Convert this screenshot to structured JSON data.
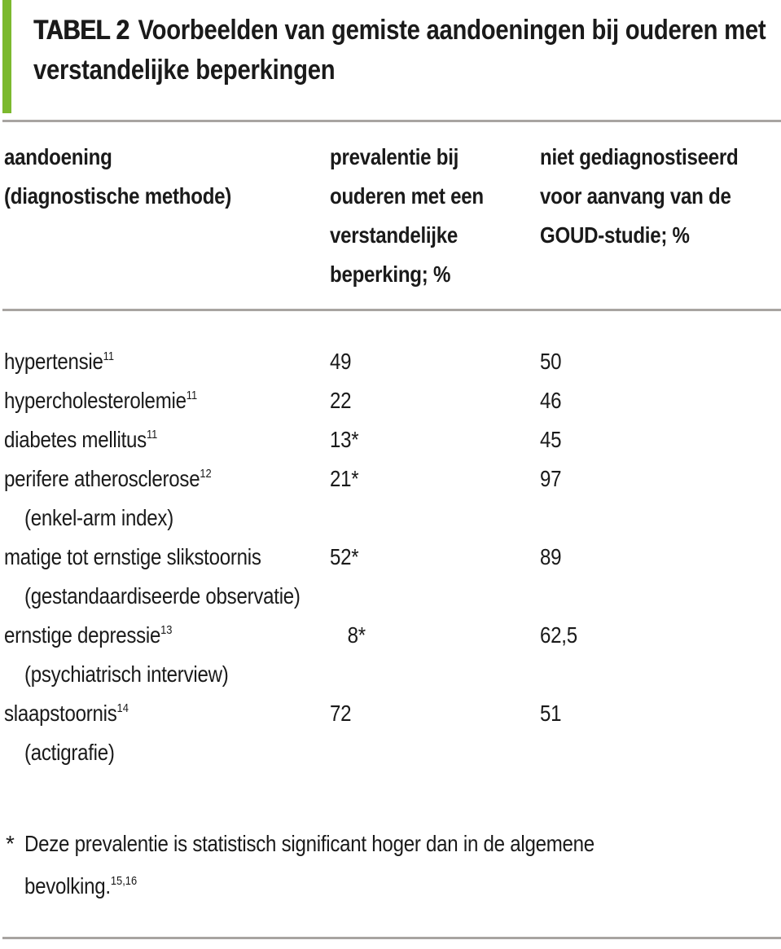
{
  "title": {
    "label": "TABEL 2",
    "line1": "Voorbeelden van gemiste aandoeningen bij ouderen met",
    "line2": "verstandelijke beperkingen"
  },
  "header": {
    "col1": [
      "aandoening",
      "(diagnostische methode)"
    ],
    "col2": [
      "prevalentie bij",
      "ouderen met een",
      "verstandelijke",
      "beperking; %"
    ],
    "col3": [
      "niet gediagnostiseerd",
      "voor aanvang van de",
      "GOUD-studie; %"
    ]
  },
  "rows": [
    {
      "condition": "hypertensie",
      "ref": "11",
      "prevalence": "49",
      "undiagnosed": "50"
    },
    {
      "condition": "hypercholesterolemie",
      "ref": "11",
      "prevalence": "22",
      "undiagnosed": "46"
    },
    {
      "condition": "diabetes mellitus",
      "ref": "11",
      "prevalence": "13*",
      "undiagnosed": "45"
    },
    {
      "condition": "perifere atherosclerose",
      "ref": "12",
      "method": "(enkel-arm index)",
      "prevalence": "21*",
      "undiagnosed": "97"
    },
    {
      "condition": "matige tot ernstige slikstoornis",
      "method": "(gestandaardiseerde observatie)",
      "prevalence": "52*",
      "undiagnosed": "89"
    },
    {
      "condition": "ernstige depressie",
      "ref": "13",
      "method": "(psychiatrisch interview)",
      "prevalence": "8*",
      "undiagnosed": "62,5"
    },
    {
      "condition": "slaapstoornis",
      "ref": "14",
      "method": "(actigrafie)",
      "prevalence": "72",
      "undiagnosed": "51"
    }
  ],
  "footnote": {
    "marker": "*",
    "line1": "Deze prevalentie is statistisch significant hoger dan in de algemene",
    "line2": "bevolking.",
    "refs": "15,16"
  },
  "colors": {
    "accent_green": "#7cb92e",
    "rule_gray": "#a8a4a1",
    "text": "#1a1a1a"
  }
}
